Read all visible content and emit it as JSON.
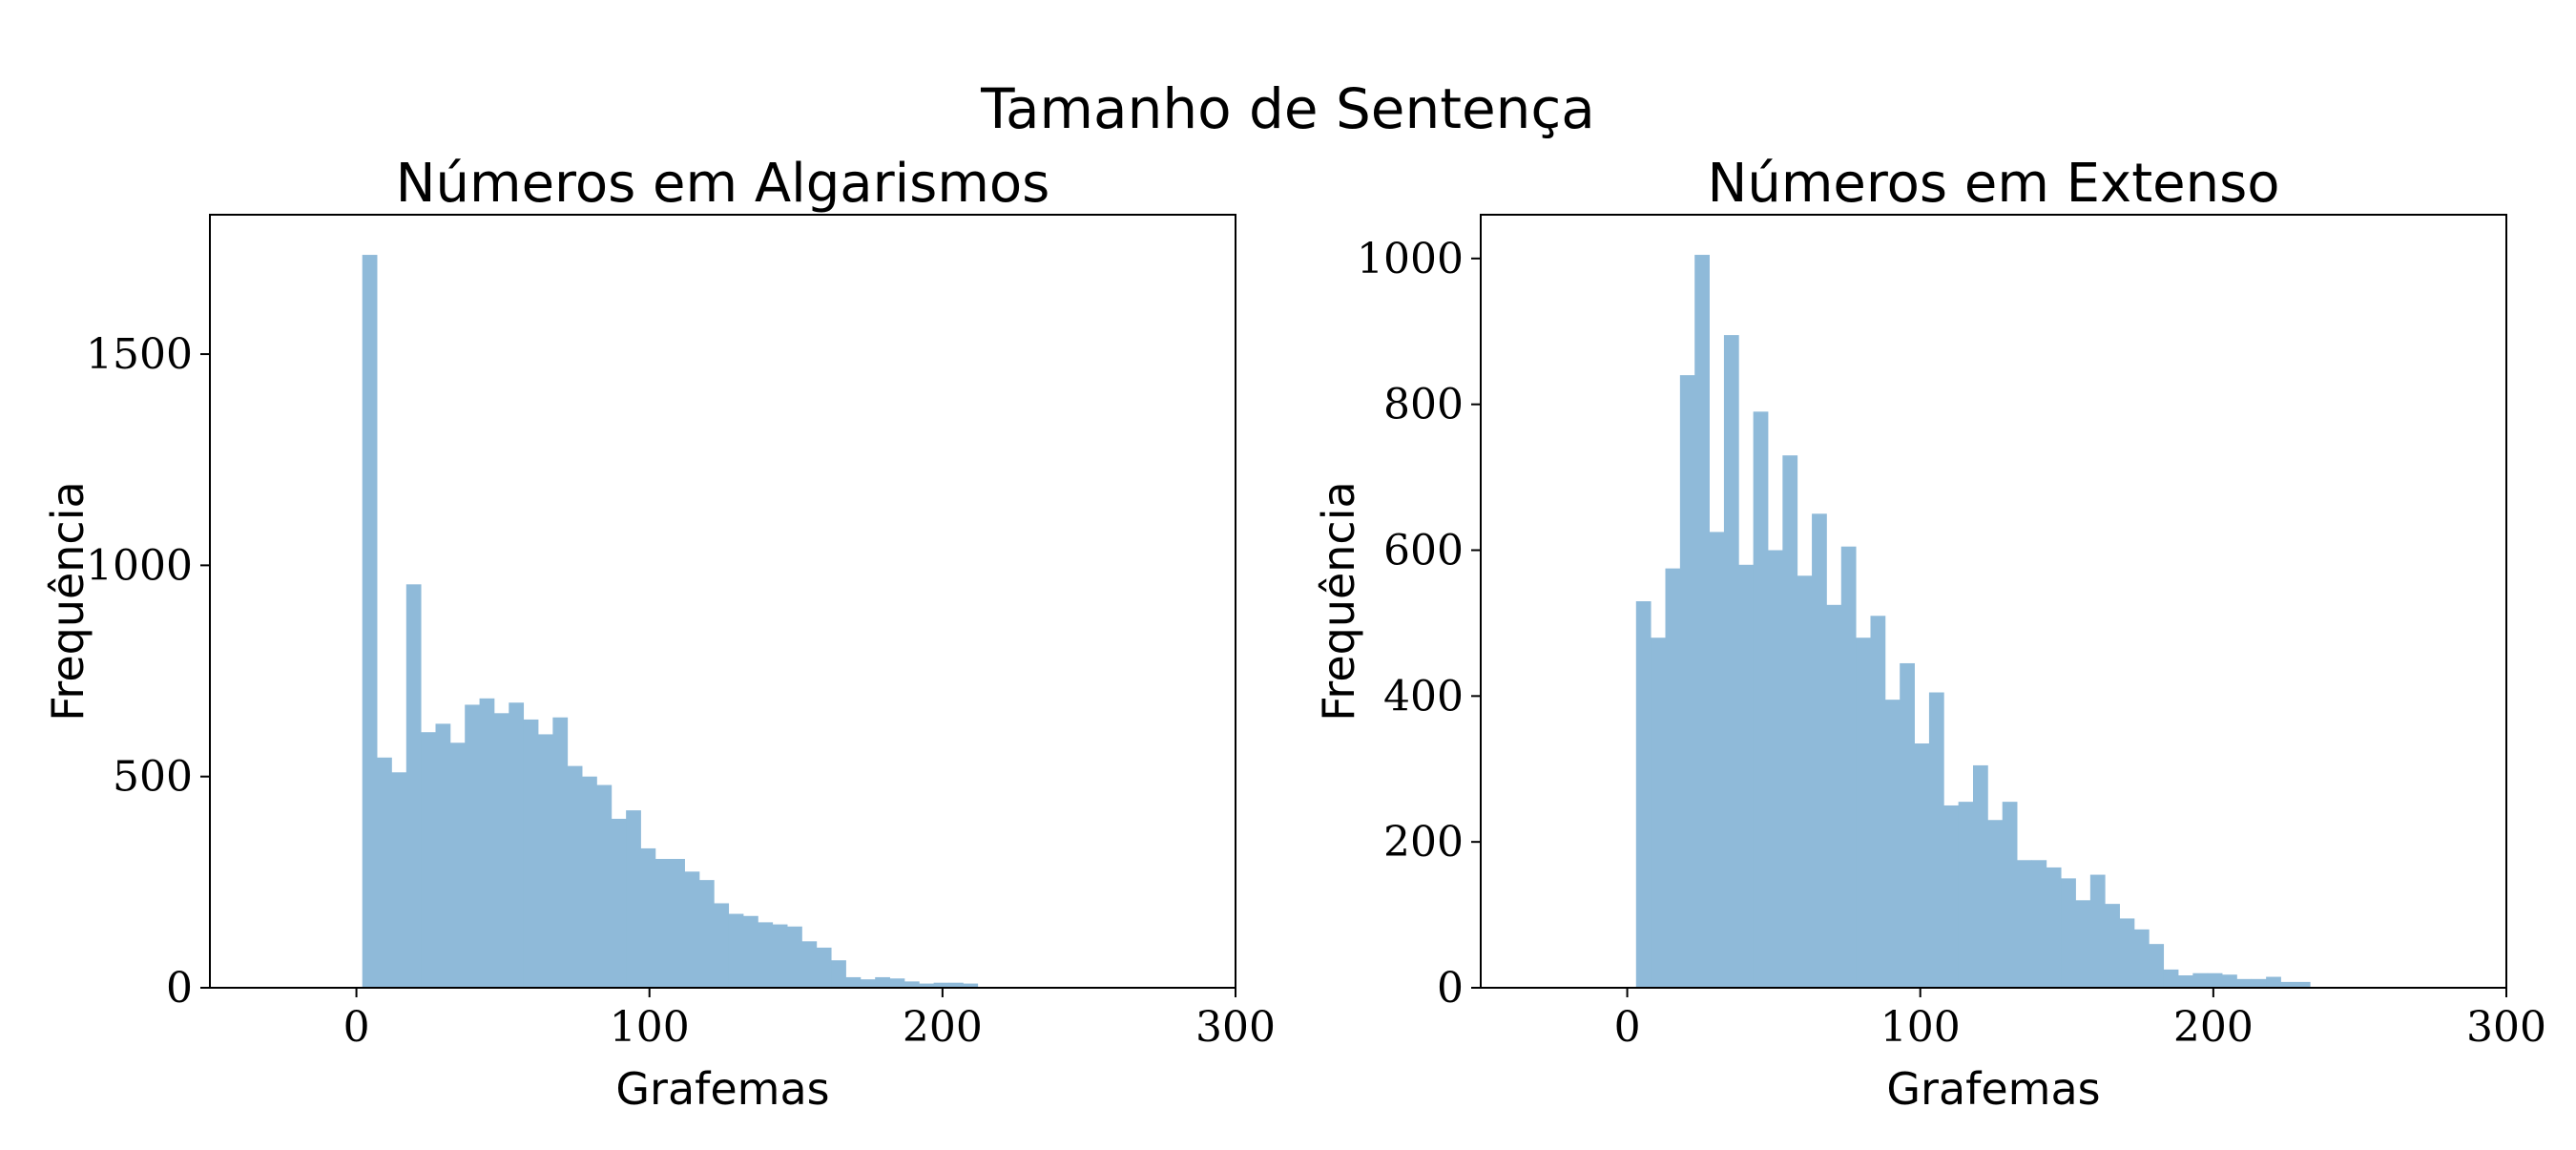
{
  "figure": {
    "suptitle": "Tamanho de Sentença"
  },
  "colors": {
    "bar": "#8fbad9",
    "axis": "#000000"
  },
  "chart_data": [
    {
      "type": "bar",
      "title": "Números em Algarismos",
      "xlabel": "Grafemas",
      "ylabel": "Frequência",
      "xlim": [
        -50,
        300
      ],
      "ylim": [
        0,
        1830
      ],
      "xticks": [
        0,
        100,
        200,
        300
      ],
      "yticks": [
        0,
        500,
        1000,
        1500
      ],
      "bin_start": 2,
      "bin_width": 5,
      "values": [
        1735,
        545,
        510,
        955,
        605,
        625,
        580,
        670,
        685,
        650,
        675,
        635,
        600,
        640,
        525,
        500,
        480,
        400,
        420,
        330,
        305,
        305,
        275,
        255,
        200,
        175,
        170,
        155,
        150,
        145,
        110,
        95,
        65,
        25,
        20,
        25,
        22,
        15,
        10,
        12,
        12,
        10
      ]
    },
    {
      "type": "bar",
      "title": "Números em Extenso",
      "xlabel": "Grafemas",
      "ylabel": "Frequência",
      "xlim": [
        -50,
        300
      ],
      "ylim": [
        0,
        1060
      ],
      "xticks": [
        0,
        100,
        200,
        300
      ],
      "yticks": [
        0,
        200,
        400,
        600,
        800,
        1000
      ],
      "bin_start": 3,
      "bin_width": 5,
      "values": [
        530,
        480,
        575,
        840,
        1005,
        625,
        895,
        580,
        790,
        600,
        730,
        565,
        650,
        525,
        605,
        480,
        510,
        395,
        445,
        335,
        405,
        250,
        255,
        305,
        230,
        255,
        175,
        175,
        165,
        150,
        120,
        155,
        115,
        95,
        80,
        60,
        25,
        17,
        20,
        20,
        18,
        12,
        12,
        15,
        8,
        8
      ]
    }
  ]
}
